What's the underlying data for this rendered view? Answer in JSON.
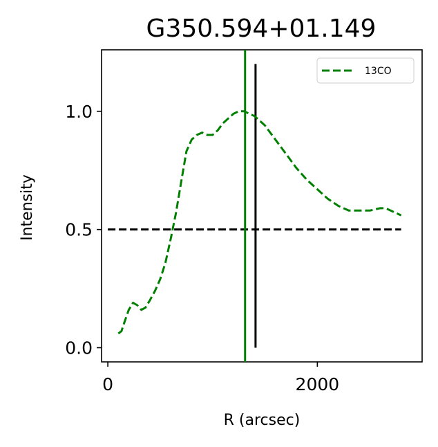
{
  "chart_data": {
    "type": "line",
    "title": "G350.594+01.149",
    "xlabel": "R (arcsec)",
    "ylabel": "Intensity",
    "xlim": [
      -60,
      3000
    ],
    "ylim": [
      -0.06,
      1.26
    ],
    "xticks": [
      0,
      2000
    ],
    "xtick_labels": [
      "0",
      "2000"
    ],
    "yticks": [
      0.0,
      0.5,
      1.0
    ],
    "ytick_labels": [
      "0.0",
      "0.5",
      "1.0"
    ],
    "grid": false,
    "legend_position": "top-right",
    "series": [
      {
        "name": "13CO",
        "color": "#008000",
        "linestyle": "dashed",
        "x": [
          100,
          130,
          160,
          200,
          240,
          280,
          320,
          360,
          400,
          450,
          500,
          550,
          600,
          650,
          700,
          750,
          800,
          850,
          900,
          950,
          1000,
          1050,
          1100,
          1150,
          1200,
          1250,
          1300,
          1350,
          1400,
          1450,
          1500,
          1550,
          1600,
          1650,
          1700,
          1800,
          1900,
          2000,
          2100,
          2200,
          2300,
          2400,
          2500,
          2600,
          2650,
          2700,
          2750,
          2800
        ],
        "y": [
          0.06,
          0.07,
          0.11,
          0.16,
          0.19,
          0.18,
          0.16,
          0.17,
          0.2,
          0.24,
          0.29,
          0.36,
          0.46,
          0.57,
          0.7,
          0.83,
          0.88,
          0.9,
          0.91,
          0.9,
          0.9,
          0.92,
          0.95,
          0.97,
          0.99,
          1.0,
          1.0,
          0.99,
          0.98,
          0.96,
          0.94,
          0.91,
          0.88,
          0.85,
          0.82,
          0.76,
          0.71,
          0.67,
          0.63,
          0.6,
          0.58,
          0.58,
          0.58,
          0.59,
          0.59,
          0.58,
          0.57,
          0.56
        ]
      }
    ],
    "reference_lines": [
      {
        "kind": "horizontal",
        "y": 0.5,
        "x_range": [
          0,
          2800
        ],
        "color": "#000000",
        "linestyle": "dashed"
      },
      {
        "kind": "vertical",
        "x": 1310,
        "color": "#008000",
        "linestyle": "solid",
        "spans_axes": true
      },
      {
        "kind": "vertical",
        "x": 1410,
        "y_range": [
          0.0,
          1.2
        ],
        "color": "#000000",
        "linestyle": "solid"
      }
    ]
  }
}
